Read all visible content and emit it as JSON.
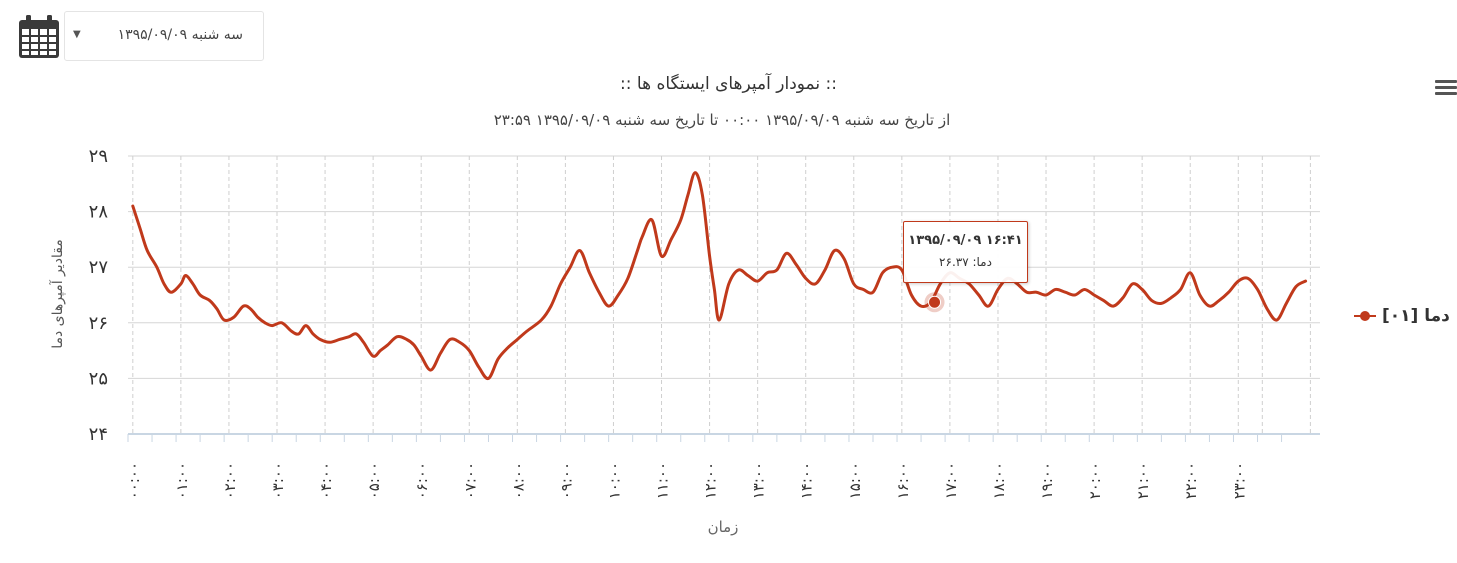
{
  "date_picker": {
    "value": "سه شنبه ۱۳۹۵/۰۹/۰۹",
    "icon": "calendar-icon"
  },
  "menu": {
    "icon": "hamburger-menu-icon"
  },
  "chart_data": {
    "type": "line",
    "title": ":: نمودار آمپرهای ایستگاه ها ::",
    "subtitle": "از تاریخ سه شنبه ۱۳۹۵/۰۹/۰۹ ۰۰:۰۰ تا تاریخ سه شنبه ۱۳۹۵/۰۹/۰۹ ۲۳:۵۹",
    "xlabel": "زمان",
    "ylabel": "مقادیر آمپرهای دما",
    "ylim": [
      24,
      29
    ],
    "yticks": [
      24,
      25,
      26,
      27,
      28,
      29
    ],
    "ytick_labels": [
      "۲۴",
      "۲۵",
      "۲۶",
      "۲۷",
      "۲۸",
      "۲۹"
    ],
    "xlim": [
      -0.1,
      24.7
    ],
    "xticks": [
      0,
      1,
      2,
      3,
      4,
      5,
      6,
      7,
      8,
      9,
      10,
      11,
      12,
      13,
      14,
      15,
      16,
      17,
      18,
      19,
      20,
      21,
      22,
      23
    ],
    "xtick_labels": [
      "۰۰:۰۰",
      "۰۱:۰۰",
      "۰۲:۰۰",
      "۰۳:۰۰",
      "۰۴:۰۰",
      "۰۵:۰۰",
      "۰۶:۰۰",
      "۰۷:۰۰",
      "۰۸:۰۰",
      "۰۹:۰۰",
      "۱۰:۰۰",
      "۱۱:۰۰",
      "۱۲:۰۰",
      "۱۳:۰۰",
      "۱۴:۰۰",
      "۱۵:۰۰",
      "۱۶:۰۰",
      "۱۷:۰۰",
      "۱۸:۰۰",
      "۱۹:۰۰",
      "۲۰:۰۰",
      "۲۱:۰۰",
      "۲۲:۰۰",
      "۲۳:۰۰"
    ],
    "grid": true,
    "legend_position": "right",
    "series": [
      {
        "name": "دما [۰۱]",
        "color": "#c0391b",
        "x": [
          0.0,
          0.15,
          0.3,
          0.5,
          0.65,
          0.8,
          1.0,
          1.1,
          1.25,
          1.4,
          1.6,
          1.75,
          1.9,
          2.1,
          2.3,
          2.45,
          2.6,
          2.75,
          2.9,
          3.1,
          3.3,
          3.45,
          3.6,
          3.75,
          3.9,
          4.1,
          4.3,
          4.5,
          4.65,
          4.8,
          5.0,
          5.15,
          5.3,
          5.5,
          5.7,
          5.85,
          6.0,
          6.2,
          6.4,
          6.6,
          6.8,
          7.0,
          7.2,
          7.4,
          7.6,
          7.8,
          8.0,
          8.2,
          8.5,
          8.7,
          8.9,
          9.1,
          9.3,
          9.5,
          9.7,
          9.9,
          10.1,
          10.3,
          10.5,
          10.6,
          10.8,
          11.0,
          11.2,
          11.4,
          11.55,
          11.7,
          11.85,
          12.0,
          12.1,
          12.2,
          12.4,
          12.6,
          12.8,
          13.0,
          13.2,
          13.4,
          13.6,
          13.8,
          14.0,
          14.2,
          14.4,
          14.6,
          14.8,
          15.0,
          15.2,
          15.4,
          15.6,
          15.8,
          16.0,
          16.2,
          16.4,
          16.6,
          16.8,
          17.0,
          17.2,
          17.4,
          17.6,
          17.8,
          18.0,
          18.2,
          18.4,
          18.6,
          18.8,
          19.0,
          19.2,
          19.4,
          19.6,
          19.8,
          20.0,
          20.2,
          20.4,
          20.6,
          20.8,
          21.0,
          21.2,
          21.4,
          21.6,
          21.8,
          22.0,
          22.2,
          22.4,
          22.6,
          22.8,
          23.0,
          23.2,
          23.4,
          23.6,
          23.8,
          24.0,
          24.2,
          24.4
        ],
        "y": [
          28.1,
          27.7,
          27.3,
          27.0,
          26.7,
          26.55,
          26.7,
          26.85,
          26.7,
          26.5,
          26.4,
          26.25,
          26.05,
          26.1,
          26.3,
          26.25,
          26.1,
          26.0,
          25.95,
          26.0,
          25.85,
          25.8,
          25.95,
          25.8,
          25.7,
          25.65,
          25.7,
          25.75,
          25.8,
          25.65,
          25.4,
          25.5,
          25.6,
          25.75,
          25.7,
          25.6,
          25.4,
          25.15,
          25.45,
          25.7,
          25.65,
          25.5,
          25.2,
          25.0,
          25.35,
          25.55,
          25.7,
          25.85,
          26.05,
          26.3,
          26.7,
          27.0,
          27.3,
          26.9,
          26.55,
          26.3,
          26.5,
          26.8,
          27.3,
          27.55,
          27.85,
          27.2,
          27.5,
          27.85,
          28.3,
          28.7,
          28.3,
          27.2,
          26.6,
          26.05,
          26.7,
          26.95,
          26.85,
          26.75,
          26.9,
          26.95,
          27.25,
          27.05,
          26.8,
          26.7,
          26.95,
          27.3,
          27.15,
          26.7,
          26.6,
          26.55,
          26.9,
          27.0,
          26.95,
          26.5,
          26.3,
          26.37,
          26.7,
          26.9,
          26.8,
          26.7,
          26.5,
          26.3,
          26.6,
          26.8,
          26.7,
          26.55,
          26.55,
          26.5,
          26.6,
          26.55,
          26.5,
          26.6,
          26.5,
          26.4,
          26.3,
          26.45,
          26.7,
          26.6,
          26.4,
          26.35,
          26.45,
          26.6,
          26.9,
          26.5,
          26.3,
          26.4,
          26.55,
          26.75,
          26.8,
          26.6,
          26.25,
          26.05,
          26.35,
          26.65,
          26.75
        ],
        "marker_points": [
          0.0,
          0.15,
          0.3,
          0.5,
          0.65,
          0.8,
          1.0,
          1.1,
          1.25,
          1.4,
          1.6,
          1.75,
          1.9,
          2.1,
          2.3,
          2.45,
          2.6,
          2.75,
          2.9,
          3.1,
          3.3,
          3.45,
          3.6,
          3.75,
          3.9,
          4.1,
          4.3,
          4.5,
          4.65,
          4.8,
          5.0
        ]
      }
    ],
    "tooltip": {
      "x": 16.68,
      "y": 26.37,
      "title": "۱۳۹۵/۰۹/۰۹ ۱۶:۴۱",
      "text": "دما: ۲۶.۳۷"
    }
  }
}
